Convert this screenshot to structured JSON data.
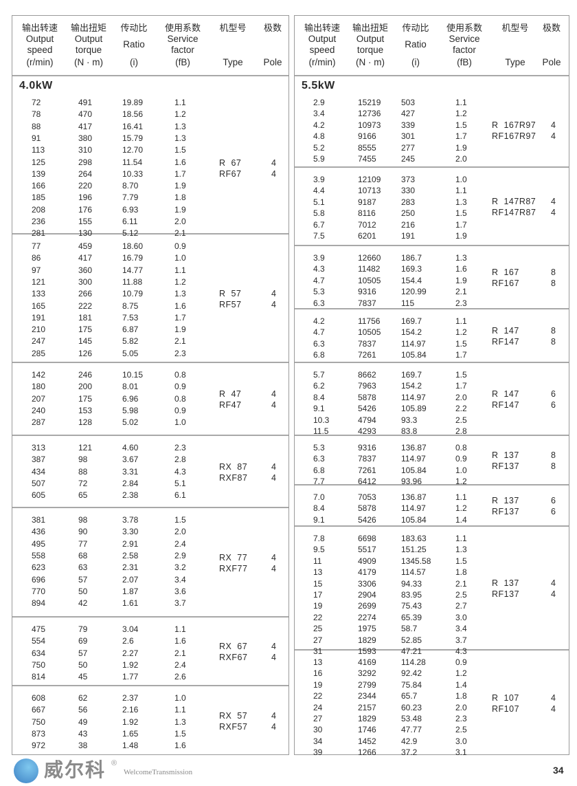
{
  "header": {
    "speed": {
      "zh": "输出转速",
      "en1": "Output",
      "en2": "speed",
      "unit": "(r/min)"
    },
    "torque": {
      "zh": "输出扭矩",
      "en1": "Output",
      "en2": "torque",
      "unit": "(N · m)"
    },
    "ratio": {
      "zh": "传动比",
      "en1": "Ratio",
      "unit": "(i)"
    },
    "service": {
      "zh": "使用系数",
      "en1": "Service",
      "en2": "factor",
      "unit": "(fB)"
    },
    "type": {
      "zh": "机型号",
      "en": "Type"
    },
    "pole": {
      "zh": "极数",
      "en": "Pole"
    }
  },
  "left": {
    "power": "4.0kW",
    "groups": [
      {
        "rows": [
          [
            "72",
            "491",
            "19.89",
            "1.1"
          ],
          [
            "78",
            "470",
            "18.56",
            "1.2"
          ],
          [
            "88",
            "417",
            "16.41",
            "1.3"
          ],
          [
            "91",
            "380",
            "15.79",
            "1.3"
          ],
          [
            "113",
            "310",
            "12.70",
            "1.5"
          ],
          [
            "125",
            "298",
            "11.54",
            "1.6"
          ],
          [
            "139",
            "264",
            "10.33",
            "1.7"
          ],
          [
            "166",
            "220",
            "8.70",
            "1.9"
          ],
          [
            "185",
            "196",
            "7.79",
            "1.8"
          ],
          [
            "208",
            "176",
            "6.93",
            "1.9"
          ],
          [
            "236",
            "155",
            "6.11",
            "2.0"
          ],
          [
            "281",
            "130",
            "5.12",
            "2.1"
          ]
        ],
        "types": [
          "R  67",
          "RF67"
        ],
        "poles": [
          "4",
          "4"
        ]
      },
      {
        "rows": [
          [
            "77",
            "459",
            "18.60",
            "0.9"
          ],
          [
            "86",
            "417",
            "16.79",
            "1.0"
          ],
          [
            "97",
            "360",
            "14.77",
            "1.1"
          ],
          [
            "121",
            "300",
            "11.88",
            "1.2"
          ],
          [
            "133",
            "266",
            "10.79",
            "1.3"
          ],
          [
            "165",
            "222",
            "8.75",
            "1.6"
          ],
          [
            "191",
            "181",
            "7.53",
            "1.7"
          ],
          [
            "210",
            "175",
            "6.87",
            "1.9"
          ],
          [
            "247",
            "145",
            "5.82",
            "2.1"
          ],
          [
            "285",
            "126",
            "5.05",
            "2.3"
          ]
        ],
        "types": [
          "R  57",
          "RF57"
        ],
        "poles": [
          "4",
          "4"
        ]
      },
      {
        "rows": [
          [
            "142",
            "246",
            "10.15",
            "0.8"
          ],
          [
            "180",
            "200",
            "8.01",
            "0.9"
          ],
          [
            "207",
            "175",
            "6.96",
            "0.8"
          ],
          [
            "240",
            "153",
            "5.98",
            "0.9"
          ],
          [
            "287",
            "128",
            "5.02",
            "1.0"
          ]
        ],
        "types": [
          "R  47",
          "RF47"
        ],
        "poles": [
          "4",
          "4"
        ]
      },
      {
        "rows": [
          [
            "313",
            "121",
            "4.60",
            "2.3"
          ],
          [
            "387",
            "98",
            "3.67",
            "2.8"
          ],
          [
            "434",
            "88",
            "3.31",
            "4.3"
          ],
          [
            "507",
            "72",
            "2.84",
            "5.1"
          ],
          [
            "605",
            "65",
            "2.38",
            "6.1"
          ]
        ],
        "types": [
          "RX  87",
          "RXF87"
        ],
        "poles": [
          "4",
          "4"
        ]
      },
      {
        "rows": [
          [
            "381",
            "98",
            "3.78",
            "1.5"
          ],
          [
            "436",
            "90",
            "3.30",
            "2.0"
          ],
          [
            "495",
            "77",
            "2.91",
            "2.4"
          ],
          [
            "558",
            "68",
            "2.58",
            "2.9"
          ],
          [
            "623",
            "63",
            "2.31",
            "3.2"
          ],
          [
            "696",
            "57",
            "2.07",
            "3.4"
          ],
          [
            "770",
            "50",
            "1.87",
            "3.6"
          ],
          [
            "894",
            "42",
            "1.61",
            "3.7"
          ]
        ],
        "types": [
          "RX  77",
          "RXF77"
        ],
        "poles": [
          "4",
          "4"
        ]
      },
      {
        "rows": [
          [
            "475",
            "79",
            "3.04",
            "1.1"
          ],
          [
            "554",
            "69",
            "2.6",
            "1.6"
          ],
          [
            "634",
            "57",
            "2.27",
            "2.1"
          ],
          [
            "750",
            "50",
            "1.92",
            "2.4"
          ],
          [
            "814",
            "45",
            "1.77",
            "2.6"
          ]
        ],
        "types": [
          "RX  67",
          "RXF67"
        ],
        "poles": [
          "4",
          "4"
        ]
      },
      {
        "rows": [
          [
            "608",
            "62",
            "2.37",
            "1.0"
          ],
          [
            "667",
            "56",
            "2.16",
            "1.1"
          ],
          [
            "750",
            "49",
            "1.92",
            "1.3"
          ],
          [
            "873",
            "43",
            "1.65",
            "1.5"
          ],
          [
            "972",
            "38",
            "1.48",
            "1.6"
          ]
        ],
        "types": [
          "RX  57",
          "RXF57"
        ],
        "poles": [
          "4",
          "4"
        ]
      }
    ]
  },
  "right": {
    "power": "5.5kW",
    "groups": [
      {
        "rows": [
          [
            "2.9",
            "15219",
            "503",
            "1.1"
          ],
          [
            "3.4",
            "12736",
            "427",
            "1.2"
          ],
          [
            "4.2",
            "10973",
            "339",
            "1.5"
          ],
          [
            "4.8",
            "9166",
            "301",
            "1.7"
          ],
          [
            "5.2",
            "8555",
            "277",
            "1.9"
          ],
          [
            "5.9",
            "7455",
            "245",
            "2.0"
          ]
        ],
        "types": [
          "R  167R97",
          "RF167R97"
        ],
        "poles": [
          "4",
          "4"
        ]
      },
      {
        "rows": [
          [
            "3.9",
            "12109",
            "373",
            "1.0"
          ],
          [
            "4.4",
            "10713",
            "330",
            "1.1"
          ],
          [
            "5.1",
            "9187",
            "283",
            "1.3"
          ],
          [
            "5.8",
            "8116",
            "250",
            "1.5"
          ],
          [
            "6.7",
            "7012",
            "216",
            "1.7"
          ],
          [
            "7.5",
            "6201",
            "191",
            "1.9"
          ]
        ],
        "types": [
          "R  147R87",
          "RF147R87"
        ],
        "poles": [
          "4",
          "4"
        ]
      },
      {
        "rows": [
          [
            "3.9",
            "12660",
            "186.7",
            "1.3"
          ],
          [
            "4.3",
            "11482",
            "169.3",
            "1.6"
          ],
          [
            "4.7",
            "10505",
            "154.4",
            "1.9"
          ],
          [
            "5.3",
            "9316",
            "120.99",
            "2.1"
          ],
          [
            "6.3",
            "7837",
            "115",
            "2.3"
          ]
        ],
        "types": [
          "R  167",
          "RF167"
        ],
        "poles": [
          "8",
          "8"
        ]
      },
      {
        "rows": [
          [
            "4.2",
            "11756",
            "169.7",
            "1.1"
          ],
          [
            "4.7",
            "10505",
            "154.2",
            "1.2"
          ],
          [
            "6.3",
            "7837",
            "114.97",
            "1.5"
          ],
          [
            "6.8",
            "7261",
            "105.84",
            "1.7"
          ]
        ],
        "types": [
          "R  147",
          "RF147"
        ],
        "poles": [
          "8",
          "8"
        ]
      },
      {
        "rows": [
          [
            "5.7",
            "8662",
            "169.7",
            "1.5"
          ],
          [
            "6.2",
            "7963",
            "154.2",
            "1.7"
          ],
          [
            "8.4",
            "5878",
            "114.97",
            "2.0"
          ],
          [
            "9.1",
            "5426",
            "105.89",
            "2.2"
          ],
          [
            "10.3",
            "4794",
            "93.3",
            "2.5"
          ],
          [
            "11.5",
            "4293",
            "83.8",
            "2.8"
          ]
        ],
        "types": [
          "R  147",
          "RF147"
        ],
        "poles": [
          "6",
          "6"
        ]
      },
      {
        "rows": [
          [
            "5.3",
            "9316",
            "136.87",
            "0.8"
          ],
          [
            "6.3",
            "7837",
            "114.97",
            "0.9"
          ],
          [
            "6.8",
            "7261",
            "105.84",
            "1.0"
          ],
          [
            "7.7",
            "6412",
            "93.96",
            "1.2"
          ]
        ],
        "types": [
          "R  137",
          "RF137"
        ],
        "poles": [
          "8",
          "8"
        ]
      },
      {
        "rows": [
          [
            "7.0",
            "7053",
            "136.87",
            "1.1"
          ],
          [
            "8.4",
            "5878",
            "114.97",
            "1.2"
          ],
          [
            "9.1",
            "5426",
            "105.84",
            "1.4"
          ]
        ],
        "types": [
          "R  137",
          "RF137"
        ],
        "poles": [
          "6",
          "6"
        ]
      },
      {
        "rows": [
          [
            "7.8",
            "6698",
            "183.63",
            "1.1"
          ],
          [
            "9.5",
            "5517",
            "151.25",
            "1.3"
          ],
          [
            "11",
            "4909",
            "1345.58",
            "1.5"
          ],
          [
            "13",
            "4179",
            "114.57",
            "1.8"
          ],
          [
            "15",
            "3306",
            "94.33",
            "2.1"
          ],
          [
            "17",
            "2904",
            "83.95",
            "2.5"
          ],
          [
            "19",
            "2699",
            "75.43",
            "2.7"
          ],
          [
            "22",
            "2274",
            "65.39",
            "3.0"
          ],
          [
            "25",
            "1975",
            "58.7",
            "3.4"
          ],
          [
            "27",
            "1829",
            "52.85",
            "3.7"
          ],
          [
            "31",
            "1593",
            "47.21",
            "4.3"
          ]
        ],
        "types": [
          "R  137",
          "RF137"
        ],
        "poles": [
          "4",
          "4"
        ]
      },
      {
        "rows": [
          [
            "13",
            "4169",
            "114.28",
            "0.9"
          ],
          [
            "16",
            "3292",
            "92.42",
            "1.2"
          ],
          [
            "19",
            "2799",
            "75.84",
            "1.4"
          ],
          [
            "22",
            "2344",
            "65.7",
            "1.8"
          ],
          [
            "24",
            "2157",
            "60.23",
            "2.0"
          ],
          [
            "27",
            "1829",
            "53.48",
            "2.3"
          ],
          [
            "30",
            "1746",
            "47.77",
            "2.5"
          ],
          [
            "34",
            "1452",
            "42.9",
            "3.0"
          ],
          [
            "39",
            "1266",
            "37.2",
            "3.1"
          ]
        ],
        "types": [
          "R  107",
          "RF107"
        ],
        "poles": [
          "4",
          "4"
        ]
      }
    ]
  },
  "watermark": {
    "logo_cn": "威尔科",
    "logo_en": "WelcomeTransmission",
    "registered": "®",
    "colors": {
      "circle": "#3b7fc4",
      "text": "#8a8a8a"
    }
  },
  "page_number": "34"
}
